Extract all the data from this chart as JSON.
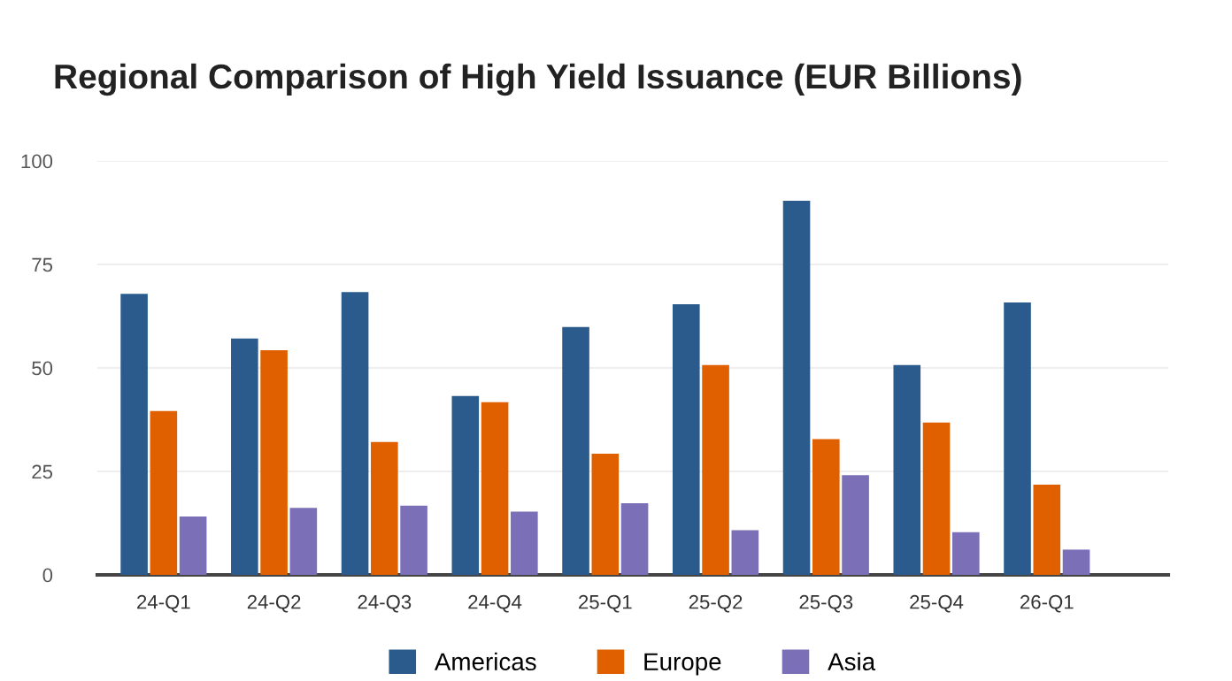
{
  "chart_data": {
    "type": "bar",
    "title": "Regional Comparison of High Yield Issuance (EUR Billions)",
    "categories": [
      "24-Q1",
      "24-Q2",
      "24-Q3",
      "24-Q4",
      "25-Q1",
      "25-Q2",
      "25-Q3",
      "25-Q4",
      "26-Q1"
    ],
    "series": [
      {
        "name": "Americas",
        "color": "#2a5b8c",
        "values": [
          67.9,
          57.1,
          68.3,
          43.2,
          59.9,
          65.4,
          90.4,
          50.7,
          65.8
        ]
      },
      {
        "name": "Europe",
        "color": "#e06000",
        "values": [
          39.6,
          54.3,
          32.1,
          41.7,
          29.3,
          50.7,
          32.8,
          36.8,
          21.8
        ]
      },
      {
        "name": "Asia",
        "color": "#7b6fb8",
        "values": [
          14.1,
          16.2,
          16.7,
          15.3,
          17.3,
          10.8,
          24.1,
          10.3,
          6.1
        ]
      }
    ],
    "ylim": [
      0,
      100
    ],
    "yticks": [
      0,
      25,
      50,
      75,
      100
    ],
    "grid": "y",
    "legend": "bottom"
  }
}
